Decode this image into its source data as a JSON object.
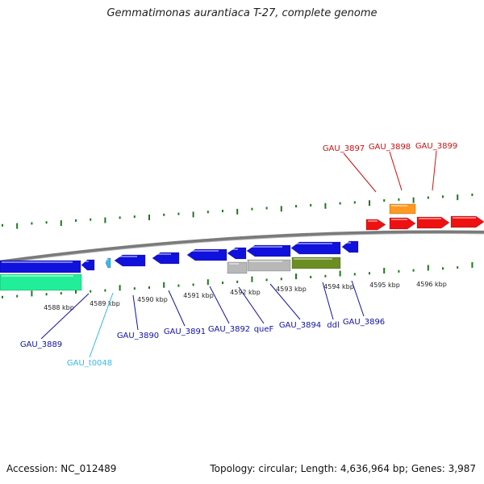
{
  "title": "Gemmatimonas aurantiaca T-27, complete genome",
  "footer": {
    "accession": "Accession: NC_012489",
    "summary": "Topology: circular; Length: 4,636,964 bp; Genes: 3,987"
  },
  "colors": {
    "forward_gene": "#ee1111",
    "reverse_gene": "#1111dd",
    "trna": "#33bbee",
    "rrna_like": "#22ee99",
    "grey_gene": "#b8b8b8",
    "olive_gene": "#6b8e23",
    "orange_gene": "#ff9922",
    "tick": "#1a7a1a",
    "backbone": "#888888",
    "label_forward": "#cc1111",
    "label_reverse": "#1111aa",
    "label_trna": "#33bbee"
  },
  "scale_labels": [
    "4588 kbp",
    "4589 kbp",
    "4590 kbp",
    "4591 kbp",
    "4592 kbp",
    "4593 kbp",
    "4594 kbp",
    "4595 kbp",
    "4596 kbp"
  ],
  "forward_labels": [
    "GAU_3897",
    "GAU_3898",
    "GAU_3899"
  ],
  "reverse_labels": [
    "GAU_3889",
    "GAU_t0048",
    "GAU_3890",
    "GAU_3891",
    "GAU_3892",
    "queF",
    "GAU_3894",
    "ddl",
    "GAU_3896"
  ]
}
